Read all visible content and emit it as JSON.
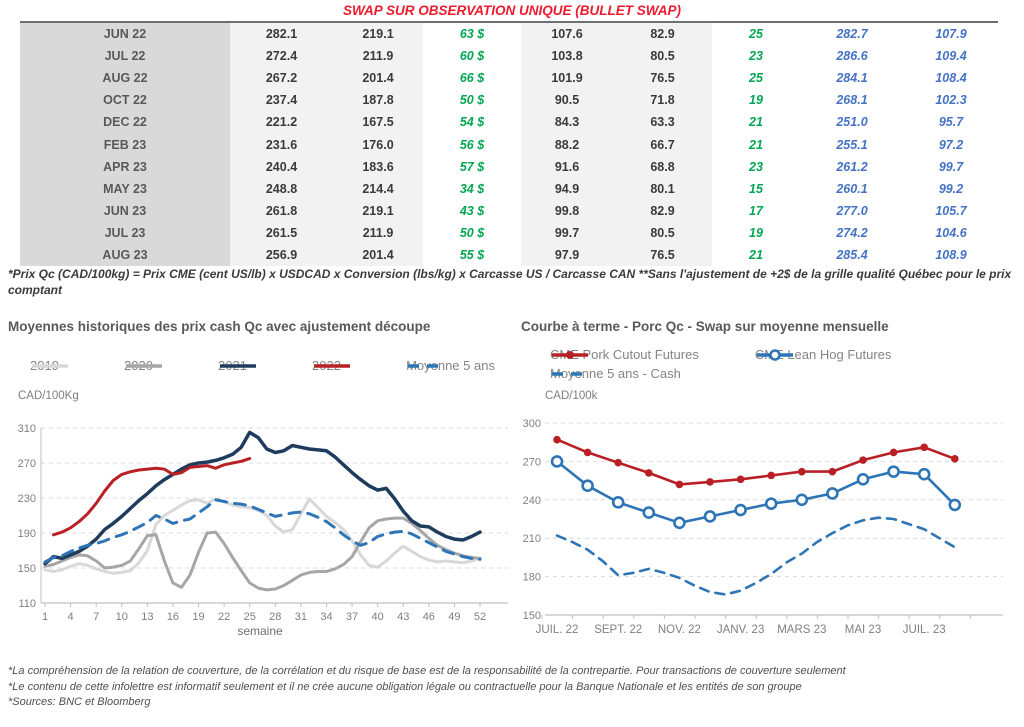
{
  "page": {
    "title": "SWAP SUR OBSERVATION UNIQUE (BULLET SWAP)",
    "title_color": "#ec1b2e",
    "footnote_table": "*Prix Qc (CAD/100kg) = Prix CME (cent US/lb) x USDCAD x Conversion (lbs/kg) x Carcasse US / Carcasse CAN **Sans l'ajustement de +2$ de la grille qualité Québec pour le prix comptant",
    "footnotes_bottom": [
      "*La compréhension de la relation de couverture, de la corrélation et du risque de base est de la responsabilité de la contrepartie. Pour transactions de couverture seulement",
      "*Le contenu de cette infolettre est informatif seulement et il ne crée aucune obligation légale ou contractuelle pour la Banque Nationale et les entités de son groupe",
      "*Sources: BNC et Bloomberg"
    ]
  },
  "colors": {
    "green": "#00a650",
    "blue": "#4472c4",
    "red_series": "#b92025",
    "navy_series": "#1f3b5e",
    "blue_series": "#2e75b6",
    "gray_2020": "#a6a6a6",
    "gray_2019": "#d8d8d8",
    "tick_label": "#7f7f7f",
    "gridline": "#d9d9d9",
    "axis": "#c0c0c0"
  },
  "table": {
    "rows": [
      {
        "month": "JUN 22",
        "qc_swap": "282.1",
        "qc_cash": "219.1",
        "gain_qc": "63 $",
        "cme_swap": "107.6",
        "cme_cash": "82.9",
        "gain_cme": "25",
        "courbe_qc": "282.7",
        "courbe_cme": "107.9"
      },
      {
        "month": "JUL 22",
        "qc_swap": "272.4",
        "qc_cash": "211.9",
        "gain_qc": "60 $",
        "cme_swap": "103.8",
        "cme_cash": "80.5",
        "gain_cme": "23",
        "courbe_qc": "286.6",
        "courbe_cme": "109.4"
      },
      {
        "month": "AUG 22",
        "qc_swap": "267.2",
        "qc_cash": "201.4",
        "gain_qc": "66 $",
        "cme_swap": "101.9",
        "cme_cash": "76.5",
        "gain_cme": "25",
        "courbe_qc": "284.1",
        "courbe_cme": "108.4"
      },
      {
        "month": "OCT 22",
        "qc_swap": "237.4",
        "qc_cash": "187.8",
        "gain_qc": "50 $",
        "cme_swap": "90.5",
        "cme_cash": "71.8",
        "gain_cme": "19",
        "courbe_qc": "268.1",
        "courbe_cme": "102.3"
      },
      {
        "month": "DEC 22",
        "qc_swap": "221.2",
        "qc_cash": "167.5",
        "gain_qc": "54 $",
        "cme_swap": "84.3",
        "cme_cash": "63.3",
        "gain_cme": "21",
        "courbe_qc": "251.0",
        "courbe_cme": "95.7"
      },
      {
        "month": "FEB 23",
        "qc_swap": "231.6",
        "qc_cash": "176.0",
        "gain_qc": "56 $",
        "cme_swap": "88.2",
        "cme_cash": "66.7",
        "gain_cme": "21",
        "courbe_qc": "255.1",
        "courbe_cme": "97.2"
      },
      {
        "month": "APR 23",
        "qc_swap": "240.4",
        "qc_cash": "183.6",
        "gain_qc": "57 $",
        "cme_swap": "91.6",
        "cme_cash": "68.8",
        "gain_cme": "23",
        "courbe_qc": "261.2",
        "courbe_cme": "99.7"
      },
      {
        "month": "MAY 23",
        "qc_swap": "248.8",
        "qc_cash": "214.4",
        "gain_qc": "34 $",
        "cme_swap": "94.9",
        "cme_cash": "80.1",
        "gain_cme": "15",
        "courbe_qc": "260.1",
        "courbe_cme": "99.2"
      },
      {
        "month": "JUN 23",
        "qc_swap": "261.8",
        "qc_cash": "219.1",
        "gain_qc": "43 $",
        "cme_swap": "99.8",
        "cme_cash": "82.9",
        "gain_cme": "17",
        "courbe_qc": "277.0",
        "courbe_cme": "105.7"
      },
      {
        "month": "JUL 23",
        "qc_swap": "261.5",
        "qc_cash": "211.9",
        "gain_qc": "50 $",
        "cme_swap": "99.7",
        "cme_cash": "80.5",
        "gain_cme": "19",
        "courbe_qc": "274.2",
        "courbe_cme": "104.6"
      },
      {
        "month": "AUG 23",
        "qc_swap": "256.9",
        "qc_cash": "201.4",
        "gain_qc": "55 $",
        "cme_swap": "97.9",
        "cme_cash": "76.5",
        "gain_cme": "21",
        "courbe_qc": "285.4",
        "courbe_cme": "108.9"
      }
    ]
  },
  "chart_data": [
    {
      "type": "line",
      "title": "Moyennes historiques des prix cash Qc avec ajustement découpe",
      "ylabel": "CAD/100Kg",
      "xlabel": "semaine",
      "ylim": [
        110,
        310
      ],
      "yticks": [
        110,
        150,
        190,
        230,
        270,
        310
      ],
      "xticks": [
        1,
        4,
        7,
        10,
        13,
        16,
        19,
        22,
        25,
        28,
        31,
        34,
        37,
        40,
        43,
        46,
        49,
        52
      ],
      "grid": "dashed-horizontal",
      "legend_position": "top",
      "series": [
        {
          "name": "2019",
          "color": "#d8d8d8",
          "style": "solid",
          "x_start": 1,
          "values": [
            148,
            146,
            148,
            152,
            155,
            153,
            149,
            146,
            144,
            145,
            147,
            156,
            170,
            200,
            210,
            216,
            222,
            227,
            228,
            224,
            229,
            226,
            222,
            220,
            219,
            216,
            210,
            198,
            191,
            194,
            212,
            229,
            219,
            209,
            202,
            194,
            181,
            165,
            153,
            151,
            158,
            167,
            175,
            169,
            163,
            159,
            157,
            158,
            157,
            156,
            158,
            161
          ]
        },
        {
          "name": "2020",
          "color": "#a6a6a6",
          "style": "solid",
          "x_start": 1,
          "values": [
            152,
            154,
            158,
            162,
            165,
            164,
            158,
            150,
            151,
            153,
            158,
            172,
            187,
            188,
            158,
            133,
            128,
            142,
            168,
            190,
            191,
            178,
            162,
            147,
            133,
            127,
            125,
            126,
            130,
            136,
            142,
            145,
            146,
            146,
            149,
            154,
            163,
            180,
            196,
            204,
            206,
            207,
            207,
            201,
            193,
            184,
            176,
            171,
            167,
            164,
            162,
            161
          ]
        },
        {
          "name": "2021",
          "color": "#1f3b5e",
          "style": "solid",
          "x_start": 1,
          "values": [
            155,
            163,
            161,
            165,
            169,
            175,
            183,
            194,
            201,
            209,
            218,
            227,
            235,
            244,
            251,
            257,
            263,
            268,
            270,
            271,
            273,
            276,
            280,
            288,
            305,
            299,
            286,
            282,
            284,
            290,
            288,
            286,
            285,
            284,
            277,
            268,
            259,
            251,
            244,
            239,
            241,
            229,
            215,
            204,
            198,
            197,
            191,
            186,
            183,
            182,
            186,
            191
          ]
        },
        {
          "name": "2022",
          "color": "#b92025",
          "style": "solid",
          "x_start": 2,
          "values": [
            188,
            191,
            196,
            203,
            212,
            224,
            238,
            250,
            257,
            260,
            262,
            263,
            264,
            263,
            257,
            259,
            265,
            266,
            267,
            264,
            268,
            270,
            272,
            275
          ]
        },
        {
          "name": "Moyenne 5 ans",
          "color": "#2e75b6",
          "style": "dashed",
          "x_start": 1,
          "values": [
            157,
            162,
            164,
            169,
            173,
            176,
            178,
            181,
            185,
            188,
            192,
            197,
            202,
            210,
            206,
            201,
            204,
            206,
            213,
            220,
            228,
            226,
            224,
            223,
            221,
            217,
            213,
            209,
            211,
            213,
            214,
            212,
            208,
            203,
            196,
            188,
            181,
            176,
            179,
            186,
            189,
            191,
            192,
            189,
            184,
            179,
            174,
            169,
            166,
            163,
            161,
            160
          ]
        }
      ]
    },
    {
      "type": "line",
      "title": "Courbe à terme - Porc Qc - Swap sur moyenne mensuelle",
      "ylabel": "CAD/100k",
      "ylim": [
        150,
        300
      ],
      "yticks": [
        150,
        180,
        210,
        240,
        270,
        300
      ],
      "xtick_labels": [
        "JUIL. 22",
        "SEPT. 22",
        "NOV. 22",
        "JANV. 23",
        "MARS 23",
        "MAI 23",
        "JUIL. 23"
      ],
      "xtick_month_index": [
        0,
        2,
        4,
        6,
        8,
        10,
        12
      ],
      "grid": "dashed-horizontal",
      "legend_position": "top",
      "series": [
        {
          "name": "CME Pork Cutout Futures",
          "color": "#b92025",
          "style": "solid",
          "marker": "filled-circle",
          "x": [
            0,
            1,
            2,
            3,
            4,
            5,
            6,
            7,
            8,
            9,
            10,
            11,
            12,
            13
          ],
          "values": [
            287,
            277,
            269,
            261,
            252,
            254,
            256,
            259,
            262,
            262,
            271,
            277,
            281,
            272
          ]
        },
        {
          "name": "CME Lean Hog Futures",
          "color": "#2e75b6",
          "style": "solid",
          "marker": "open-circle",
          "x": [
            0,
            1,
            2,
            3,
            4,
            5,
            6,
            7,
            8,
            9,
            10,
            11,
            12,
            13
          ],
          "values": [
            270,
            251,
            238,
            230,
            222,
            227,
            232,
            237,
            240,
            245,
            256,
            262,
            260,
            236
          ]
        },
        {
          "name": "Moyenne 5 ans - Cash",
          "color": "#2e75b6",
          "style": "dashed",
          "marker": "none",
          "x": [
            0,
            0.5,
            1,
            1.5,
            2,
            2.5,
            3,
            3.5,
            4,
            4.5,
            5,
            5.5,
            6,
            6.5,
            7,
            7.5,
            8,
            8.5,
            9,
            9.5,
            10,
            10.5,
            11,
            11.5,
            12,
            12.5,
            13
          ],
          "values": [
            212,
            207,
            201,
            192,
            181,
            183,
            186,
            183,
            179,
            173,
            168,
            166,
            169,
            175,
            182,
            191,
            198,
            207,
            214,
            220,
            224,
            226,
            225,
            221,
            217,
            210,
            203
          ]
        }
      ]
    }
  ]
}
